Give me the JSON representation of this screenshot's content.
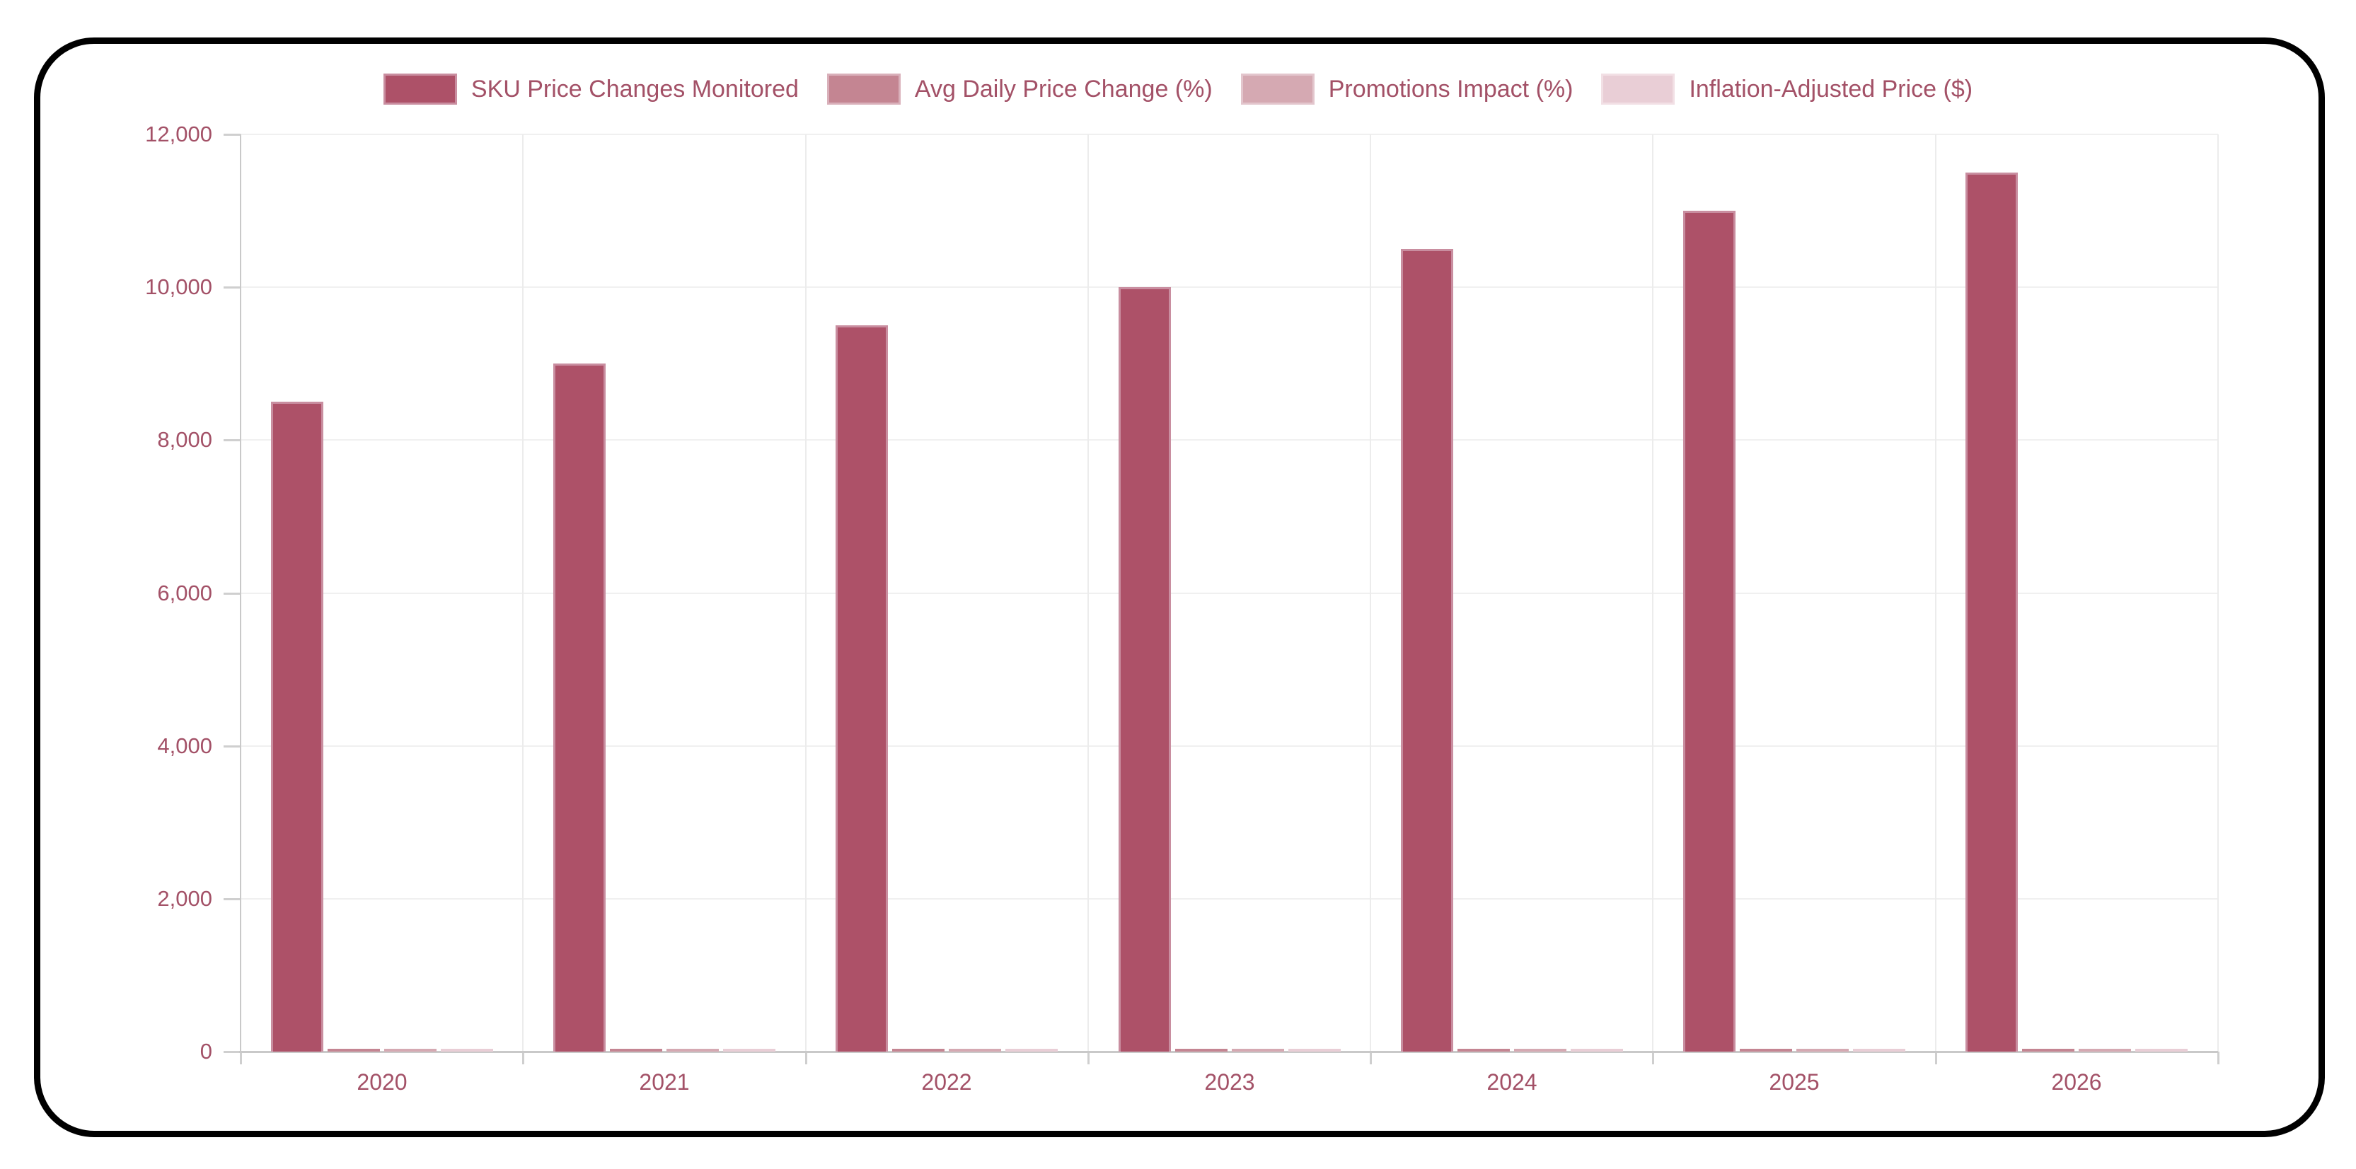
{
  "frame": {
    "border_color": "#000000",
    "background": "#ffffff"
  },
  "chart_data": {
    "type": "bar",
    "title": "",
    "categories": [
      "2020",
      "2021",
      "2022",
      "2023",
      "2024",
      "2025",
      "2026"
    ],
    "series": [
      {
        "name": "SKU Price Changes Monitored",
        "color": "#ad5168",
        "border_color": "#c98ea0",
        "values": [
          8500,
          9000,
          9500,
          10000,
          10500,
          11000,
          11500
        ]
      },
      {
        "name": "Avg Daily Price Change (%)",
        "color": "#c48592",
        "border_color": "#d9b0ba",
        "values": [
          2.5,
          2.7,
          2.9,
          3.1,
          3.3,
          3.5,
          3.7
        ]
      },
      {
        "name": "Promotions Impact (%)",
        "color": "#d5a9b2",
        "border_color": "#e3c6cd",
        "values": [
          12,
          12.5,
          13,
          13.5,
          14,
          14.5,
          15
        ]
      },
      {
        "name": "Inflation-Adjusted Price ($)",
        "color": "#e9ced6",
        "border_color": "#f2e0e5",
        "values": [
          20,
          21,
          22,
          23,
          24,
          25,
          26
        ]
      }
    ],
    "x_axis": {
      "tick_labels": [
        "2020",
        "2021",
        "2022",
        "2023",
        "2024",
        "2025",
        "2026"
      ]
    },
    "y_axis": {
      "min": 0,
      "max": 12000,
      "tick_step": 2000,
      "tick_labels": [
        "0",
        "2,000",
        "4,000",
        "6,000",
        "8,000",
        "10,000",
        "12,000"
      ]
    },
    "legend_position": "top",
    "grid": true,
    "colors": {
      "tick_text": "#a35167",
      "legend_text": "#a35167",
      "grid_line": "#f0f0f0",
      "axis_line": "#c9c9c9",
      "boundary_line": "#ececec",
      "tick_mark": "#cfcfcf"
    }
  }
}
